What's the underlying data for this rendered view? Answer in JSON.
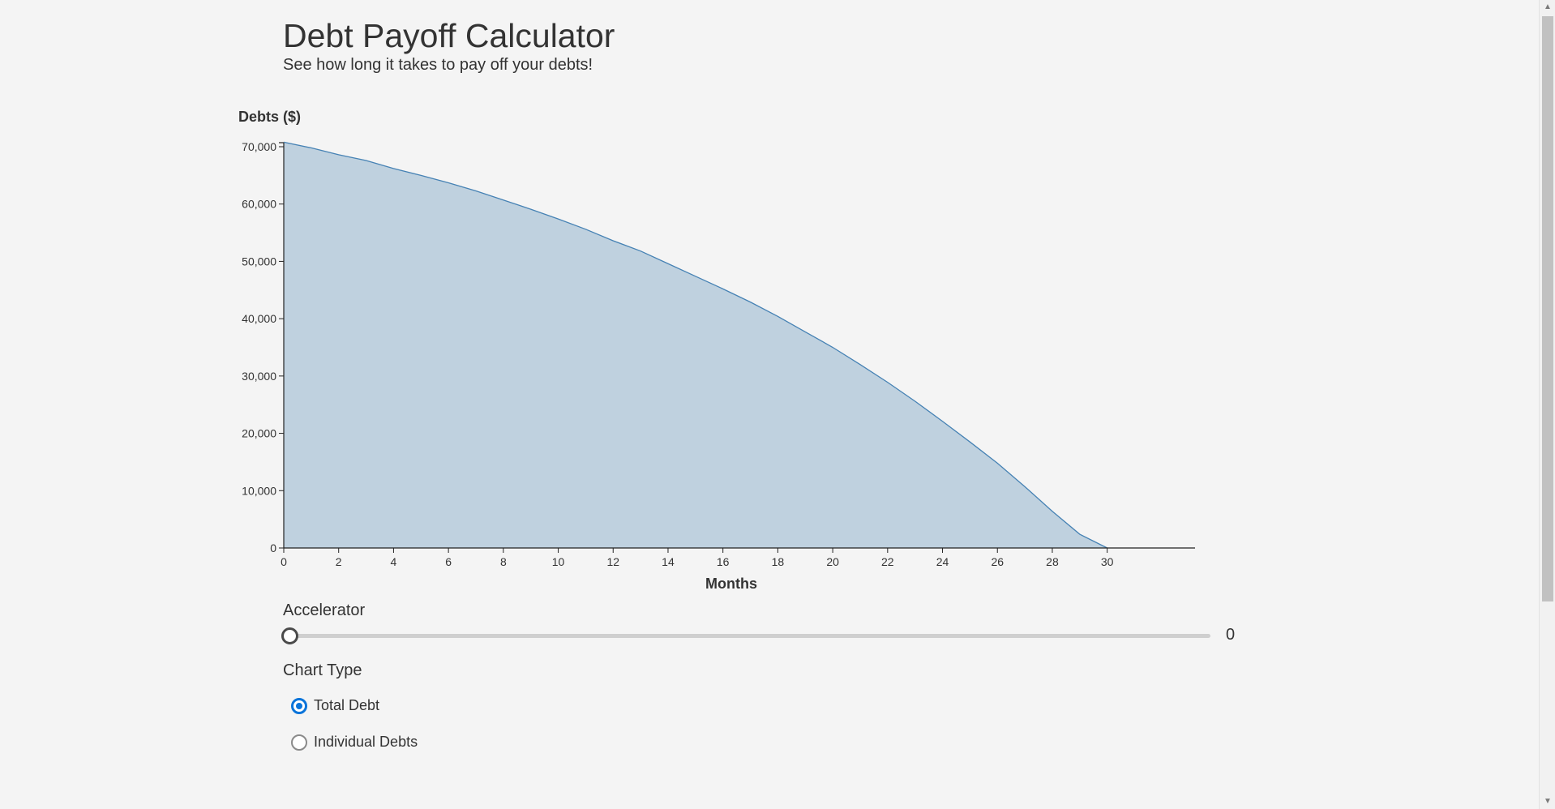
{
  "header": {
    "title": "Debt Payoff Calculator",
    "subtitle": "See how long it takes to pay off your debts!"
  },
  "chart_data": {
    "type": "area",
    "ylabel": "Debts ($)",
    "xlabel": "Months",
    "xlim": [
      0,
      33.2
    ],
    "ylim": [
      0,
      70000
    ],
    "y_ticks": [
      0,
      10000,
      20000,
      30000,
      40000,
      50000,
      60000,
      70000
    ],
    "y_tick_labels": [
      "0",
      "10,000",
      "20,000",
      "30,000",
      "40,000",
      "50,000",
      "60,000",
      "70,000"
    ],
    "x_ticks": [
      0,
      2,
      4,
      6,
      8,
      10,
      12,
      14,
      16,
      18,
      20,
      22,
      24,
      26,
      28,
      30
    ],
    "x_tick_labels": [
      "0",
      "2",
      "4",
      "6",
      "8",
      "10",
      "12",
      "14",
      "16",
      "18",
      "20",
      "22",
      "24",
      "26",
      "28",
      "30"
    ],
    "x": [
      0,
      1,
      2,
      3,
      4,
      5,
      6,
      7,
      8,
      9,
      10,
      11,
      12,
      13,
      14,
      15,
      16,
      17,
      18,
      19,
      20,
      21,
      22,
      23,
      24,
      25,
      26,
      27,
      28,
      29,
      30
    ],
    "series": [
      {
        "values": [
          70800,
          69800,
          68600,
          67600,
          66200,
          65000,
          63700,
          62300,
          60700,
          59100,
          57400,
          55600,
          53600,
          51800,
          49600,
          47400,
          45200,
          42900,
          40400,
          37700,
          35000,
          32000,
          28900,
          25600,
          22100,
          18500,
          14800,
          10700,
          6400,
          2400,
          0
        ]
      }
    ],
    "grid": false
  },
  "controls": {
    "accelerator_label": "Accelerator",
    "accelerator_value": "0",
    "accelerator_fraction": 0,
    "chart_type_label": "Chart Type",
    "options": [
      {
        "label": "Total Debt",
        "checked": true
      },
      {
        "label": "Individual Debts",
        "checked": false
      }
    ]
  },
  "colors": {
    "area_fill": "#bfd1df",
    "area_line": "#4682b4",
    "radio_accent": "#0a74da"
  }
}
